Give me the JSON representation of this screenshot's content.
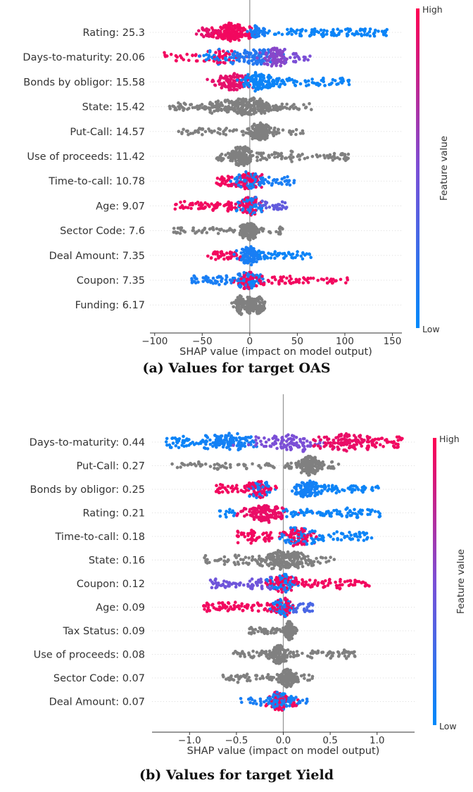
{
  "colors": {
    "high": "#ff0052",
    "low": "#008afb",
    "mid": "#7b4fd6",
    "categorical": "#808080",
    "axis": "#333333",
    "zero_line": "#999999"
  },
  "chart_data": [
    {
      "type": "scatter",
      "subtype": "shap-beeswarm",
      "caption": "(a) Values for target OAS",
      "xlabel": "SHAP value (impact on model output)",
      "xlim": [
        -105,
        160
      ],
      "xticks": [
        -100,
        -50,
        0,
        50,
        100,
        150
      ],
      "xtick_labels": [
        "−100",
        "−50",
        "0",
        "50",
        "100",
        "150"
      ],
      "colorbar": {
        "label": "Feature value",
        "high": "High",
        "low": "Low"
      },
      "features": [
        {
          "label": "Rating: 25.3",
          "segments": [
            {
              "g": [
                -22,
                11
              ],
              "n": 170,
              "c": 0.95
            },
            {
              "g": [
                -45,
                8
              ],
              "n": 25,
              "c": 0.9
            },
            {
              "u": [
                5,
                145
              ],
              "n": 110,
              "c": 0.05
            },
            {
              "g": [
                8,
                6
              ],
              "n": 30,
              "c": 0.1
            }
          ]
        },
        {
          "label": "Days-to-maturity: 20.06",
          "segments": [
            {
              "u": [
                -92,
                -40
              ],
              "n": 25,
              "c": 0.95
            },
            {
              "g": [
                -30,
                10
              ],
              "n": 70,
              "c": "m"
            },
            {
              "g": [
                5,
                10
              ],
              "n": 90,
              "c": 0.15
            },
            {
              "g": [
                28,
                7
              ],
              "n": 80,
              "c": 0.55
            },
            {
              "u": [
                35,
                65
              ],
              "n": 20,
              "c": 0.5
            }
          ]
        },
        {
          "label": "Bonds by obligor: 15.58",
          "segments": [
            {
              "g": [
                -20,
                10
              ],
              "n": 110,
              "c": 0.9
            },
            {
              "g": [
                10,
                9
              ],
              "n": 120,
              "c": 0.05
            },
            {
              "u": [
                20,
                105
              ],
              "n": 60,
              "c": 0.05
            }
          ]
        },
        {
          "label": "State: 15.42",
          "segments": [
            {
              "g": [
                0,
                14
              ],
              "n": 170,
              "c": null
            },
            {
              "u": [
                -85,
                65
              ],
              "n": 90,
              "c": null
            },
            {
              "g": [
                -40,
                14
              ],
              "n": 40,
              "c": null
            }
          ]
        },
        {
          "label": "Put-Call: 14.57",
          "segments": [
            {
              "g": [
                12,
                6
              ],
              "n": 130,
              "c": null
            },
            {
              "u": [
                -78,
                57
              ],
              "n": 80,
              "c": null
            }
          ]
        },
        {
          "label": "Use of proceeds: 11.42",
          "segments": [
            {
              "g": [
                -8,
                6
              ],
              "n": 130,
              "c": null
            },
            {
              "u": [
                -35,
                105
              ],
              "n": 110,
              "c": null
            }
          ]
        },
        {
          "label": "Time-to-call: 10.78",
          "segments": [
            {
              "u": [
                -35,
                -8
              ],
              "n": 40,
              "c": 0.95
            },
            {
              "g": [
                0,
                7
              ],
              "n": 130,
              "c": "m"
            },
            {
              "u": [
                10,
                47
              ],
              "n": 30,
              "c": 0.1
            }
          ]
        },
        {
          "label": "Age: 9.07",
          "segments": [
            {
              "u": [
                -80,
                -10
              ],
              "n": 70,
              "c": 0.95
            },
            {
              "g": [
                -2,
                7
              ],
              "n": 120,
              "c": "m"
            },
            {
              "u": [
                8,
                40
              ],
              "n": 30,
              "c": 0.4
            }
          ]
        },
        {
          "label": "Sector Code: 7.6",
          "segments": [
            {
              "g": [
                0,
                5
              ],
              "n": 120,
              "c": null
            },
            {
              "u": [
                -80,
                37
              ],
              "n": 70,
              "c": null
            }
          ]
        },
        {
          "label": "Deal Amount: 7.35",
          "segments": [
            {
              "u": [
                -45,
                -8
              ],
              "n": 45,
              "c": 0.95
            },
            {
              "g": [
                0,
                6
              ],
              "n": 110,
              "c": 0.1
            },
            {
              "u": [
                8,
                65
              ],
              "n": 50,
              "c": 0.05
            }
          ]
        },
        {
          "label": "Coupon: 7.35",
          "segments": [
            {
              "u": [
                -62,
                -8
              ],
              "n": 60,
              "c": 0.1
            },
            {
              "g": [
                0,
                7
              ],
              "n": 120,
              "c": "m"
            },
            {
              "u": [
                10,
                110
              ],
              "n": 60,
              "c": 0.95
            }
          ]
        },
        {
          "label": "Funding: 6.17",
          "segments": [
            {
              "g": [
                -10,
                3
              ],
              "n": 50,
              "c": null
            },
            {
              "g": [
                0,
                3
              ],
              "n": 60,
              "c": null
            },
            {
              "g": [
                10,
                3
              ],
              "n": 50,
              "c": null
            },
            {
              "u": [
                -20,
                15
              ],
              "n": 30,
              "c": null
            }
          ]
        }
      ]
    },
    {
      "type": "scatter",
      "subtype": "shap-beeswarm",
      "caption": "(b) Values for target Yield",
      "xlabel": "SHAP value (impact on model output)",
      "xlim": [
        -1.4,
        1.4
      ],
      "xticks": [
        -1.0,
        -0.5,
        0.0,
        0.5,
        1.0
      ],
      "xtick_labels": [
        "−1.0",
        "−0.5",
        "0.0",
        "0.5",
        "1.0"
      ],
      "colorbar": {
        "label": "Feature value",
        "high": "High",
        "low": "Low"
      },
      "features": [
        {
          "label": "Days-to-maturity: 0.44",
          "segments": [
            {
              "u": [
                -1.25,
                -0.8
              ],
              "n": 40,
              "c": 0.05
            },
            {
              "g": [
                -0.55,
                0.15
              ],
              "n": 110,
              "c": 0.08
            },
            {
              "g": [
                0.1,
                0.2
              ],
              "n": 100,
              "c": 0.5
            },
            {
              "g": [
                0.68,
                0.18
              ],
              "n": 120,
              "c": 0.92
            },
            {
              "u": [
                0.9,
                1.28
              ],
              "n": 30,
              "c": 0.95
            }
          ]
        },
        {
          "label": "Put-Call: 0.27",
          "segments": [
            {
              "g": [
                0.28,
                0.06
              ],
              "n": 130,
              "c": null
            },
            {
              "u": [
                -1.2,
                0.6
              ],
              "n": 100,
              "c": null
            }
          ]
        },
        {
          "label": "Bonds by obligor: 0.25",
          "segments": [
            {
              "u": [
                -0.72,
                -0.35
              ],
              "n": 40,
              "c": 0.95
            },
            {
              "g": [
                -0.25,
                0.07
              ],
              "n": 100,
              "c": "m"
            },
            {
              "g": [
                0.25,
                0.08
              ],
              "n": 110,
              "c": 0.08
            },
            {
              "u": [
                0.35,
                1.03
              ],
              "n": 50,
              "c": 0.05
            }
          ]
        },
        {
          "label": "Rating: 0.21",
          "segments": [
            {
              "u": [
                -0.7,
                -0.5
              ],
              "n": 12,
              "c": 0.05
            },
            {
              "g": [
                -0.18,
                0.12
              ],
              "n": 140,
              "c": 0.92
            },
            {
              "u": [
                0,
                1.05
              ],
              "n": 80,
              "c": 0.05
            }
          ]
        },
        {
          "label": "Time-to-call: 0.18",
          "segments": [
            {
              "u": [
                -0.5,
                -0.1
              ],
              "n": 50,
              "c": 0.95
            },
            {
              "g": [
                0.18,
                0.1
              ],
              "n": 130,
              "c": "m"
            },
            {
              "u": [
                0.3,
                0.95
              ],
              "n": 50,
              "c": 0.05
            }
          ]
        },
        {
          "label": "State: 0.16",
          "segments": [
            {
              "g": [
                0.02,
                0.12
              ],
              "n": 160,
              "c": null
            },
            {
              "u": [
                -0.88,
                0.55
              ],
              "n": 100,
              "c": null
            }
          ]
        },
        {
          "label": "Coupon: 0.12",
          "segments": [
            {
              "u": [
                -0.78,
                -0.1
              ],
              "n": 70,
              "c": 0.45
            },
            {
              "g": [
                0,
                0.07
              ],
              "n": 120,
              "c": "m"
            },
            {
              "u": [
                0.1,
                0.92
              ],
              "n": 70,
              "c": 0.95
            }
          ]
        },
        {
          "label": "Age: 0.09",
          "segments": [
            {
              "u": [
                -0.85,
                -0.1
              ],
              "n": 80,
              "c": 0.95
            },
            {
              "g": [
                0,
                0.06
              ],
              "n": 110,
              "c": "m"
            },
            {
              "u": [
                0.1,
                0.32
              ],
              "n": 25,
              "c": 0.3
            }
          ]
        },
        {
          "label": "Tax Status: 0.09",
          "segments": [
            {
              "g": [
                0.06,
                0.03
              ],
              "n": 90,
              "c": null
            },
            {
              "u": [
                -0.38,
                0.15
              ],
              "n": 60,
              "c": null
            }
          ]
        },
        {
          "label": "Use of proceeds: 0.08",
          "segments": [
            {
              "g": [
                -0.05,
                0.05
              ],
              "n": 110,
              "c": null
            },
            {
              "u": [
                -0.55,
                0.77
              ],
              "n": 110,
              "c": null
            }
          ]
        },
        {
          "label": "Sector Code: 0.07",
          "segments": [
            {
              "g": [
                0.05,
                0.04
              ],
              "n": 100,
              "c": null
            },
            {
              "u": [
                -0.65,
                0.32
              ],
              "n": 80,
              "c": null
            }
          ]
        },
        {
          "label": "Deal Amount: 0.07",
          "segments": [
            {
              "g": [
                -0.02,
                0.07
              ],
              "n": 140,
              "c": "m"
            },
            {
              "u": [
                -0.47,
                0.28
              ],
              "n": 40,
              "c": 0.1
            }
          ]
        }
      ]
    }
  ]
}
